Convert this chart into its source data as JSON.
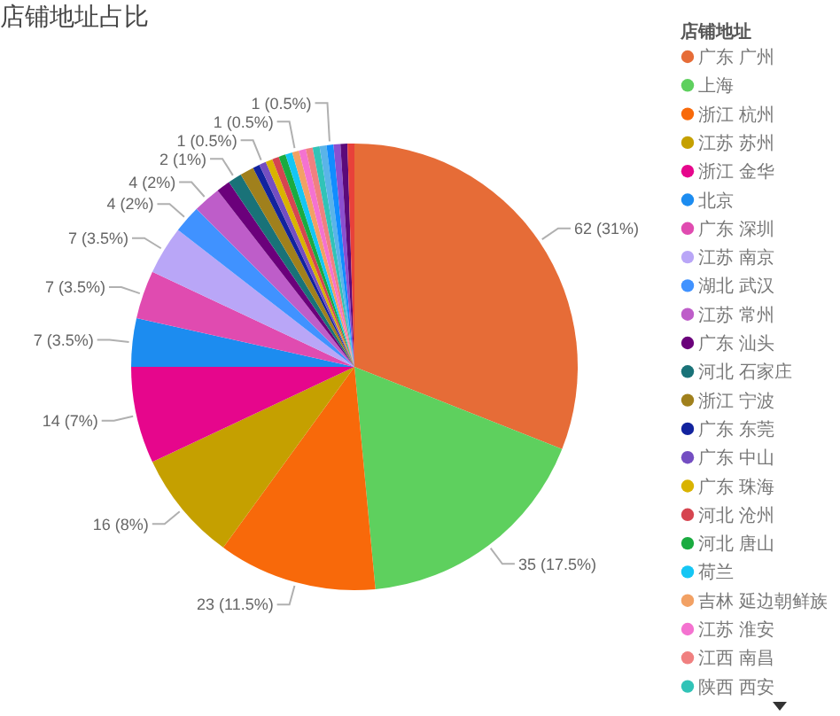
{
  "chart_data": {
    "type": "pie",
    "title": "店铺地址占比",
    "legend_title": "店铺地址",
    "legend": "right",
    "categories": [
      "广东 广州",
      "上海",
      "浙江 杭州",
      "江苏 苏州",
      "浙江 金华",
      "北京",
      "广东 深圳",
      "江苏 南京",
      "湖北 武汉",
      "江苏 常州",
      "广东 汕头",
      "河北 石家庄",
      "浙江 宁波",
      "广东 东莞",
      "广东 中山",
      "广东 珠海",
      "河北 沧州",
      "河北 唐山",
      "荷兰",
      "吉林 延边朝鲜族",
      "江苏 淮安",
      "江西 南昌",
      "陕西 西安",
      null,
      null,
      null,
      null,
      null
    ],
    "values": [
      62,
      35,
      23,
      16,
      14,
      7,
      7,
      7,
      4,
      4,
      2,
      2,
      2,
      1,
      1,
      1,
      1,
      1,
      1,
      1,
      1,
      1,
      1,
      1,
      1,
      1,
      1,
      1
    ],
    "colors": [
      "#e66c37",
      "#5ed05e",
      "#f8690a",
      "#c5a000",
      "#e6068c",
      "#1c8cf0",
      "#e04bb0",
      "#b9a6f7",
      "#4092ff",
      "#be5dc9",
      "#6b007b",
      "#197278",
      "#a0801c",
      "#12239e",
      "#744ec2",
      "#d9b300",
      "#d64550",
      "#1aab40",
      "#15c6f4",
      "#f2a164",
      "#f472d0",
      "#f08080",
      "#31c3b7",
      "#5ab4e8",
      "#118dff",
      "#8b4fd0",
      "#5b0a7a",
      "#e8413a"
    ],
    "value_labels": [
      "62 (31%)",
      "35 (17.5%)",
      "23 (11.5%)",
      "16 (8%)",
      "14 (7%)",
      "7 (3.5%)",
      "7 (3.5%)",
      "7 (3.5%)",
      "4 (2%)",
      "4 (2%)",
      null,
      "2 (1%)",
      null,
      null,
      "1 (0.5%)",
      null,
      null,
      null,
      null,
      "1 (0.5%)",
      null,
      null,
      null,
      null,
      "1 (0.5%)",
      null,
      null,
      null
    ]
  }
}
